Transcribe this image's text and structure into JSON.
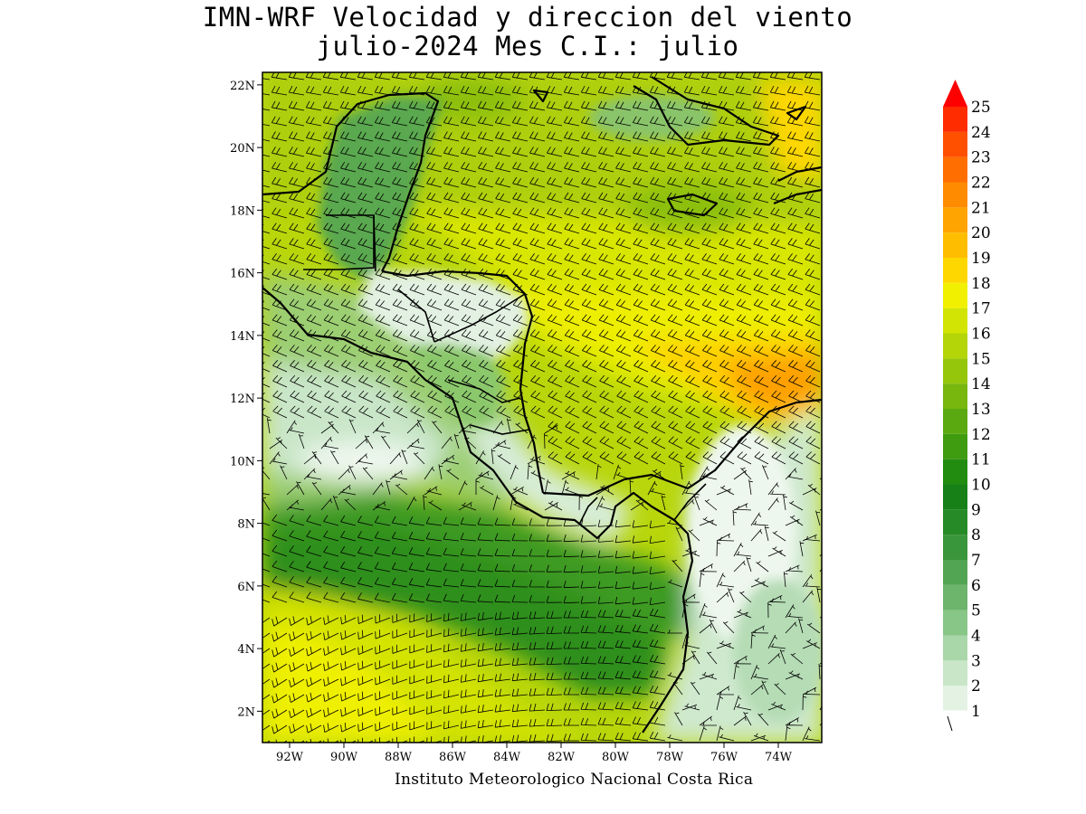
{
  "title": {
    "line1": "IMN-WRF Velocidad y direccion del viento",
    "line2": "julio-2024 Mes C.I.: julio"
  },
  "footer": "Instituto Meteorologico Nacional Costa Rica",
  "map": {
    "lon_range": [
      -93,
      -72.4
    ],
    "lat_range": [
      1,
      22.4
    ],
    "lon_ticks": [
      {
        "value": -92,
        "label": "92W"
      },
      {
        "value": -90,
        "label": "90W"
      },
      {
        "value": -88,
        "label": "88W"
      },
      {
        "value": -86,
        "label": "86W"
      },
      {
        "value": -84,
        "label": "84W"
      },
      {
        "value": -82,
        "label": "82W"
      },
      {
        "value": -80,
        "label": "80W"
      },
      {
        "value": -78,
        "label": "78W"
      },
      {
        "value": -76,
        "label": "76W"
      },
      {
        "value": -74,
        "label": "74W"
      }
    ],
    "lat_ticks": [
      {
        "value": 2,
        "label": "2N"
      },
      {
        "value": 4,
        "label": "4N"
      },
      {
        "value": 6,
        "label": "6N"
      },
      {
        "value": 8,
        "label": "8N"
      },
      {
        "value": 10,
        "label": "10N"
      },
      {
        "value": 12,
        "label": "12N"
      },
      {
        "value": 14,
        "label": "14N"
      },
      {
        "value": 16,
        "label": "16N"
      },
      {
        "value": 18,
        "label": "18N"
      },
      {
        "value": 20,
        "label": "20N"
      },
      {
        "value": 22,
        "label": "22N"
      }
    ]
  },
  "colorbar": {
    "levels": [
      "1",
      "2",
      "3",
      "4",
      "5",
      "6",
      "7",
      "8",
      "9",
      "10",
      "11",
      "12",
      "13",
      "14",
      "15",
      "16",
      "17",
      "18",
      "19",
      "20",
      "21",
      "22",
      "23",
      "24",
      "25"
    ],
    "colors": [
      "#e4f2e4",
      "#c9e6c9",
      "#a9d7a9",
      "#88c688",
      "#6db46d",
      "#52a552",
      "#3a963a",
      "#268a26",
      "#178017",
      "#228c10",
      "#3f9b10",
      "#5aa910",
      "#77b70e",
      "#95c60b",
      "#b4d508",
      "#d2e403",
      "#f0f000",
      "#ffd700",
      "#ffbd00",
      "#ffa400",
      "#ff8b00",
      "#ff6e00",
      "#ff5000",
      "#ff2c00"
    ],
    "arrow_color": "#ff0000"
  },
  "wind_regions": {
    "caribbean_max_speed_range": "19-21",
    "pacific_north_speed_range": "1-4",
    "pacific_south_speed_range": "15-17"
  },
  "colors": {
    "land_low": "#c9e6c9",
    "land_high": "#f4faf4",
    "coastline": "#000000",
    "barb": "#000000"
  }
}
